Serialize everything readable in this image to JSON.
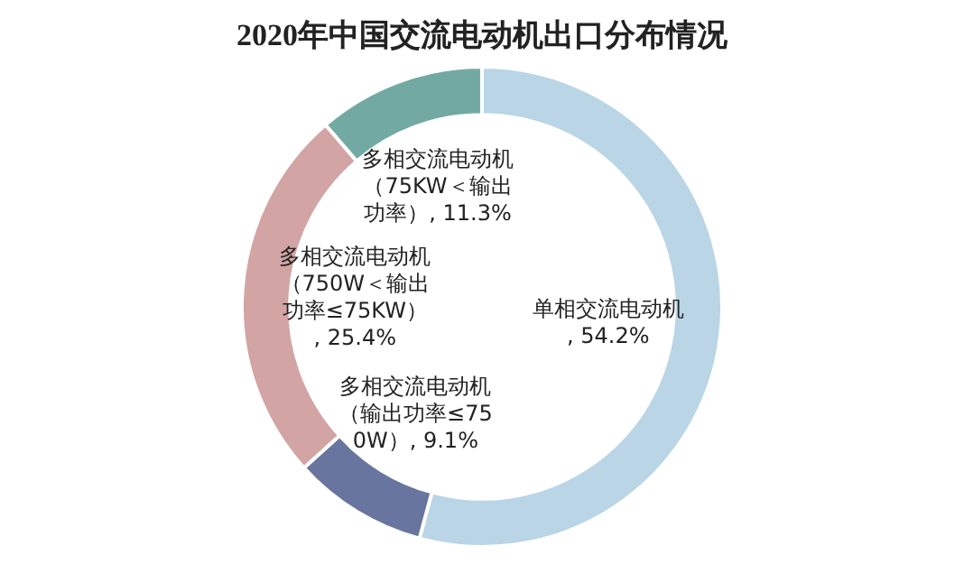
{
  "chart_data": {
    "type": "donut",
    "title": "2020年中国交流电动机出口分布情况",
    "categories": [
      "单相交流电动机",
      "多相交流电动机（输出功率≤750W）",
      "多相交流电动机（750W＜输出功率≤75KW）",
      "多相交流电动机（75KW＜输出功率）"
    ],
    "values": [
      54.2,
      9.1,
      25.4,
      11.3
    ],
    "value_labels": [
      ", 54.2%",
      ", 9.1%",
      ", 25.4%",
      ", 11.3%"
    ],
    "colors": [
      "#b9d5e6",
      "#68759e",
      "#d3a4a4",
      "#72aaa3"
    ],
    "legend": false
  }
}
